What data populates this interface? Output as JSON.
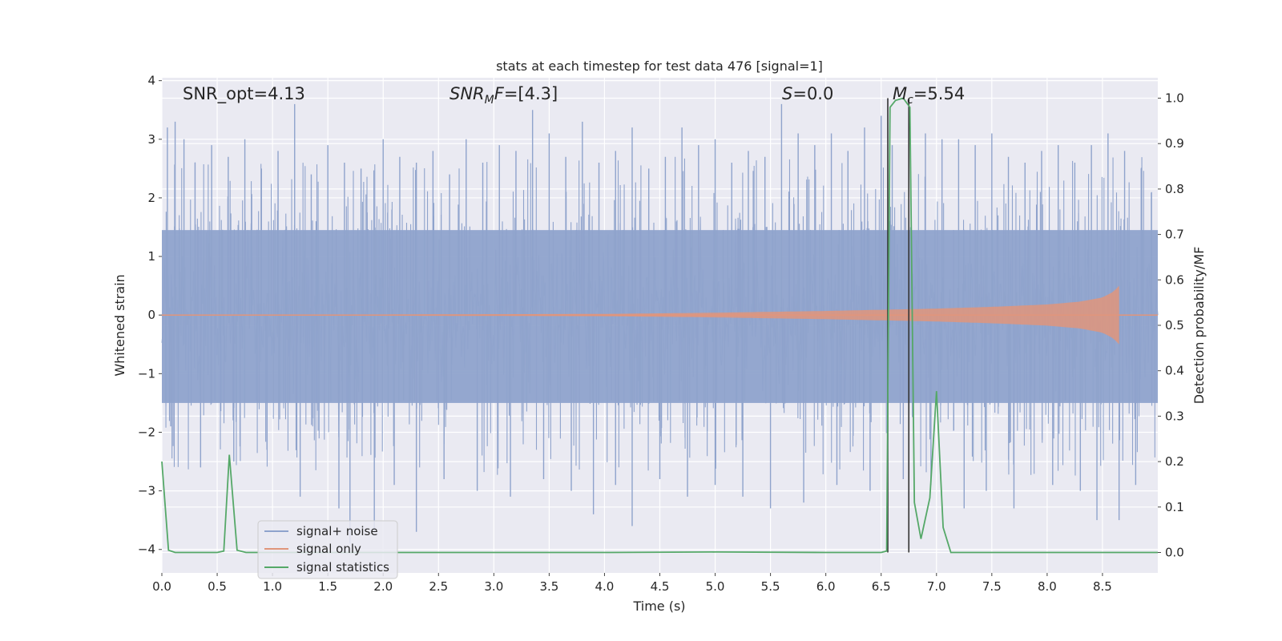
{
  "chart_data": {
    "type": "line",
    "title": "stats at each timestep for test data 476 [signal=1]",
    "xlabel": "Time (s)",
    "ylabel": "Whitened strain",
    "ylabel_right": "Detection probability/MF",
    "xlim": [
      0.0,
      9.0
    ],
    "ylim": [
      -4.4,
      4.05
    ],
    "ylim_right": [
      -0.045,
      1.045
    ],
    "x_ticks": [
      0.0,
      0.5,
      1.0,
      1.5,
      2.0,
      2.5,
      3.0,
      3.5,
      4.0,
      4.5,
      5.0,
      5.5,
      6.0,
      6.5,
      7.0,
      7.5,
      8.0,
      8.5
    ],
    "y_ticks": [
      4,
      3,
      2,
      1,
      0,
      -1,
      -2,
      -3,
      -4
    ],
    "y_ticks_right": [
      1.0,
      0.9,
      0.8,
      0.7,
      0.6,
      0.5,
      0.4,
      0.3,
      0.2,
      0.1,
      0.0
    ],
    "grid": true,
    "legend_position": "lower-left",
    "annotations": {
      "snr_opt": "SNR_opt=4.13",
      "snr_mf_main": "SNR",
      "snr_mf_sub": "M",
      "snr_mf_f": "F",
      "snr_mf_rest": "=[4.3]",
      "s_main": "S",
      "s_rest": "=0.0",
      "mc_main": "M",
      "mc_sub": "c",
      "mc_rest": "=5.54"
    },
    "series": [
      {
        "name": "signal+ noise",
        "color": "#8fa3cc",
        "note": "noisy whitened strain, envelope approx ±1.5 with spikes to ±3.5",
        "spikes": [
          [
            0.05,
            3.2
          ],
          [
            0.12,
            3.3
          ],
          [
            0.2,
            3.0
          ],
          [
            0.3,
            2.6
          ],
          [
            0.45,
            2.9
          ],
          [
            0.6,
            2.7
          ],
          [
            0.75,
            3.0
          ],
          [
            0.9,
            2.5
          ],
          [
            1.05,
            2.8
          ],
          [
            1.2,
            3.6
          ],
          [
            1.35,
            2.4
          ],
          [
            1.5,
            2.9
          ],
          [
            1.65,
            2.6
          ],
          [
            1.8,
            2.5
          ],
          [
            2.0,
            3.0
          ],
          [
            2.15,
            2.7
          ],
          [
            2.3,
            2.6
          ],
          [
            2.45,
            2.8
          ],
          [
            2.6,
            2.4
          ],
          [
            2.75,
            3.0
          ],
          [
            2.9,
            2.6
          ],
          [
            3.05,
            2.9
          ],
          [
            3.2,
            2.8
          ],
          [
            3.35,
            3.5
          ],
          [
            3.5,
            3.1
          ],
          [
            3.65,
            2.7
          ],
          [
            3.8,
            3.3
          ],
          [
            3.95,
            2.6
          ],
          [
            4.1,
            2.8
          ],
          [
            4.25,
            3.2
          ],
          [
            4.4,
            2.5
          ],
          [
            4.55,
            2.7
          ],
          [
            4.7,
            3.2
          ],
          [
            4.85,
            2.9
          ],
          [
            5.0,
            3.0
          ],
          [
            5.15,
            2.6
          ],
          [
            5.3,
            2.8
          ],
          [
            5.45,
            2.7
          ],
          [
            5.6,
            3.6
          ],
          [
            5.75,
            3.1
          ],
          [
            5.9,
            2.9
          ],
          [
            6.05,
            3.1
          ],
          [
            6.2,
            2.8
          ],
          [
            6.35,
            3.2
          ],
          [
            6.5,
            3.4
          ],
          [
            6.6,
            2.9
          ],
          [
            6.75,
            3.0
          ],
          [
            6.9,
            3.1
          ],
          [
            7.05,
            3.0
          ],
          [
            7.2,
            3.0
          ],
          [
            7.35,
            2.9
          ],
          [
            7.5,
            3.1
          ],
          [
            7.65,
            2.7
          ],
          [
            7.8,
            2.6
          ],
          [
            7.95,
            2.8
          ],
          [
            8.1,
            2.9
          ],
          [
            8.25,
            2.6
          ],
          [
            8.4,
            2.9
          ],
          [
            8.55,
            3.1
          ],
          [
            8.7,
            2.8
          ],
          [
            8.85,
            2.5
          ],
          [
            0.08,
            -1.9
          ],
          [
            0.35,
            -2.6
          ],
          [
            0.65,
            -2.5
          ],
          [
            0.95,
            -2.3
          ],
          [
            1.25,
            -3.1
          ],
          [
            1.6,
            -3.3
          ],
          [
            1.7,
            -3.9
          ],
          [
            1.92,
            -3.7
          ],
          [
            2.1,
            -2.9
          ],
          [
            2.3,
            -3.7
          ],
          [
            2.55,
            -2.8
          ],
          [
            2.85,
            -3.0
          ],
          [
            3.15,
            -3.1
          ],
          [
            3.45,
            -2.8
          ],
          [
            3.7,
            -3.0
          ],
          [
            3.9,
            -3.4
          ],
          [
            4.1,
            -2.9
          ],
          [
            4.25,
            -3.6
          ],
          [
            4.5,
            -2.8
          ],
          [
            4.75,
            -3.1
          ],
          [
            5.0,
            -2.9
          ],
          [
            5.25,
            -3.1
          ],
          [
            5.5,
            -3.3
          ],
          [
            5.8,
            -3.2
          ],
          [
            6.1,
            -2.9
          ],
          [
            6.4,
            -3.0
          ],
          [
            6.7,
            -2.8
          ],
          [
            6.95,
            -2.9
          ],
          [
            7.25,
            -3.3
          ],
          [
            7.45,
            -3.0
          ],
          [
            7.7,
            -3.3
          ],
          [
            8.05,
            -2.9
          ],
          [
            8.3,
            -3.0
          ],
          [
            8.45,
            -3.5
          ],
          [
            8.65,
            -3.5
          ],
          [
            8.8,
            -2.9
          ]
        ]
      },
      {
        "name": "signal only",
        "color": "#e0957b",
        "note": "chirp growing in amplitude, peaking at t ≈ 8.65 then ending",
        "chirp_start_time": 2.0,
        "chirp_end_time": 8.65,
        "amplitude_points": [
          [
            2.0,
            0.01
          ],
          [
            4.0,
            0.02
          ],
          [
            5.0,
            0.04
          ],
          [
            6.0,
            0.07
          ],
          [
            6.5,
            0.09
          ],
          [
            7.0,
            0.11
          ],
          [
            7.5,
            0.14
          ],
          [
            8.0,
            0.18
          ],
          [
            8.3,
            0.23
          ],
          [
            8.5,
            0.3
          ],
          [
            8.6,
            0.4
          ],
          [
            8.65,
            0.5
          ]
        ]
      },
      {
        "name": "signal statistics",
        "color": "#55a868",
        "axis": "right",
        "x": [
          0.0,
          0.06,
          0.12,
          0.2,
          0.3,
          0.4,
          0.5,
          0.56,
          0.61,
          0.68,
          0.76,
          0.9,
          1.0,
          2.0,
          3.0,
          4.0,
          5.0,
          6.0,
          6.5,
          6.55,
          6.58,
          6.63,
          6.7,
          6.76,
          6.8,
          6.86,
          6.94,
          7.0,
          7.06,
          7.13,
          7.2,
          8.0,
          9.0
        ],
        "y": [
          0.2,
          0.005,
          0.0,
          0.0,
          0.0,
          0.0,
          0.0,
          0.003,
          0.215,
          0.005,
          0.0,
          0.0,
          0.0,
          0.0,
          0.0,
          0.0,
          0.001,
          0.0,
          0.0,
          0.003,
          0.98,
          0.995,
          1.0,
          0.98,
          0.11,
          0.03,
          0.12,
          0.355,
          0.055,
          0.0,
          0.0,
          0.0,
          0.0
        ]
      }
    ],
    "vertical_lines": [
      6.56,
      6.75
    ],
    "vertical_lines_color": "#333333",
    "facecolor": "#eaeaf2",
    "gridcolor": "#ffffff"
  }
}
